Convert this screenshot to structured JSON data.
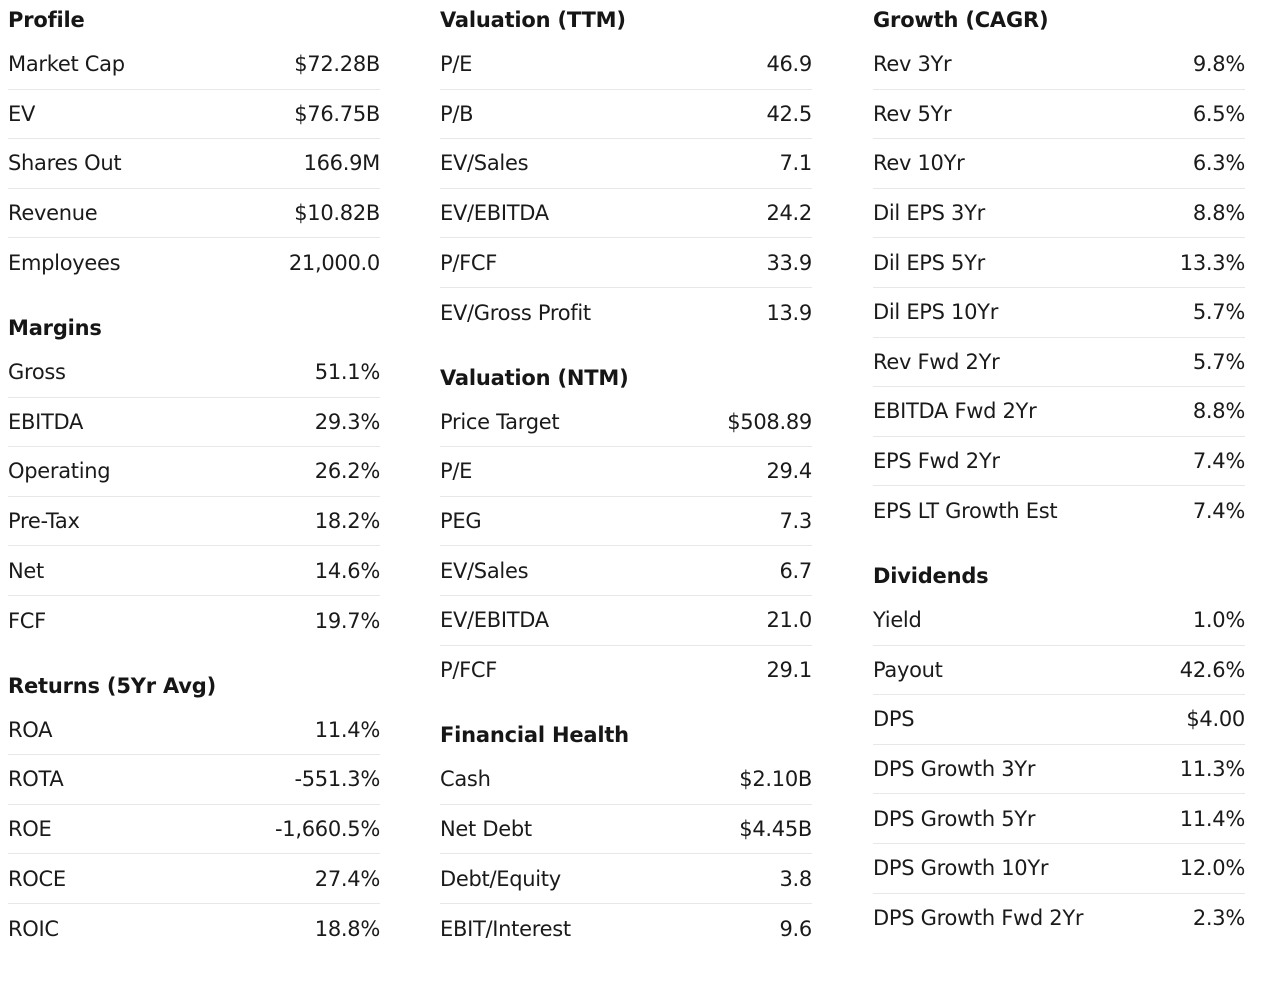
{
  "columns": [
    {
      "sections": [
        {
          "title": "Profile",
          "rows": [
            {
              "label": "Market Cap",
              "value": "$72.28B"
            },
            {
              "label": "EV",
              "value": "$76.75B"
            },
            {
              "label": "Shares Out",
              "value": "166.9M"
            },
            {
              "label": "Revenue",
              "value": "$10.82B"
            },
            {
              "label": "Employees",
              "value": "21,000.0"
            }
          ]
        },
        {
          "title": "Margins",
          "rows": [
            {
              "label": "Gross",
              "value": "51.1%"
            },
            {
              "label": "EBITDA",
              "value": "29.3%"
            },
            {
              "label": "Operating",
              "value": "26.2%"
            },
            {
              "label": "Pre-Tax",
              "value": "18.2%"
            },
            {
              "label": "Net",
              "value": "14.6%"
            },
            {
              "label": "FCF",
              "value": "19.7%"
            }
          ]
        },
        {
          "title": "Returns (5Yr Avg)",
          "rows": [
            {
              "label": "ROA",
              "value": "11.4%"
            },
            {
              "label": "ROTA",
              "value": "-551.3%"
            },
            {
              "label": "ROE",
              "value": "-1,660.5%"
            },
            {
              "label": "ROCE",
              "value": "27.4%"
            },
            {
              "label": "ROIC",
              "value": "18.8%"
            }
          ]
        }
      ]
    },
    {
      "sections": [
        {
          "title": "Valuation (TTM)",
          "rows": [
            {
              "label": "P/E",
              "value": "46.9"
            },
            {
              "label": "P/B",
              "value": "42.5"
            },
            {
              "label": "EV/Sales",
              "value": "7.1"
            },
            {
              "label": "EV/EBITDA",
              "value": "24.2"
            },
            {
              "label": "P/FCF",
              "value": "33.9"
            },
            {
              "label": "EV/Gross Profit",
              "value": "13.9"
            }
          ]
        },
        {
          "title": "Valuation (NTM)",
          "rows": [
            {
              "label": "Price Target",
              "value": "$508.89"
            },
            {
              "label": "P/E",
              "value": "29.4"
            },
            {
              "label": "PEG",
              "value": "7.3"
            },
            {
              "label": "EV/Sales",
              "value": "6.7"
            },
            {
              "label": "EV/EBITDA",
              "value": "21.0"
            },
            {
              "label": "P/FCF",
              "value": "29.1"
            }
          ]
        },
        {
          "title": "Financial Health",
          "rows": [
            {
              "label": "Cash",
              "value": "$2.10B"
            },
            {
              "label": "Net Debt",
              "value": "$4.45B"
            },
            {
              "label": "Debt/Equity",
              "value": "3.8"
            },
            {
              "label": "EBIT/Interest",
              "value": "9.6"
            }
          ]
        }
      ]
    },
    {
      "sections": [
        {
          "title": "Growth (CAGR)",
          "rows": [
            {
              "label": "Rev 3Yr",
              "value": "9.8%"
            },
            {
              "label": "Rev 5Yr",
              "value": "6.5%"
            },
            {
              "label": "Rev 10Yr",
              "value": "6.3%"
            },
            {
              "label": "Dil EPS 3Yr",
              "value": "8.8%"
            },
            {
              "label": "Dil EPS 5Yr",
              "value": "13.3%"
            },
            {
              "label": "Dil EPS 10Yr",
              "value": "5.7%"
            },
            {
              "label": "Rev Fwd 2Yr",
              "value": "5.7%"
            },
            {
              "label": "EBITDA Fwd 2Yr",
              "value": "8.8%"
            },
            {
              "label": "EPS Fwd 2Yr",
              "value": "7.4%"
            },
            {
              "label": "EPS LT Growth Est",
              "value": "7.4%"
            }
          ]
        },
        {
          "title": "Dividends",
          "rows": [
            {
              "label": "Yield",
              "value": "1.0%"
            },
            {
              "label": "Payout",
              "value": "42.6%"
            },
            {
              "label": "DPS",
              "value": "$4.00"
            },
            {
              "label": "DPS Growth 3Yr",
              "value": "11.3%"
            },
            {
              "label": "DPS Growth 5Yr",
              "value": "11.4%"
            },
            {
              "label": "DPS Growth 10Yr",
              "value": "12.0%"
            },
            {
              "label": "DPS Growth Fwd 2Yr",
              "value": "2.3%"
            }
          ]
        }
      ]
    }
  ]
}
